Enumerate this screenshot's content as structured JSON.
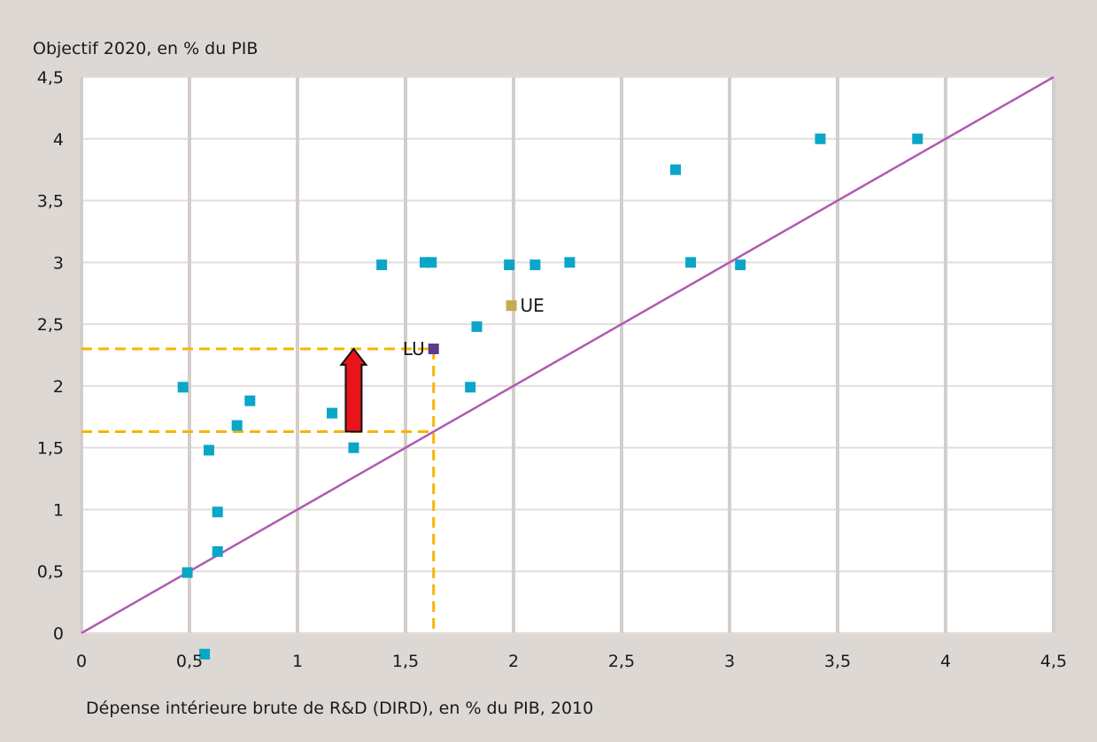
{
  "chart_data": {
    "type": "scatter",
    "ylabel": "Objectif 2020, en % du PIB",
    "xlabel": "Dépense intérieure brute de R&D (DIRD), en % du PIB, 2010",
    "xlim": [
      0,
      4.5
    ],
    "ylim": [
      0,
      4.5
    ],
    "x_ticks": [
      "0",
      "0,5",
      "1",
      "1,5",
      "2",
      "2,5",
      "3",
      "3,5",
      "4",
      "4,5"
    ],
    "y_ticks": [
      "0",
      "0,5",
      "1",
      "1,5",
      "2",
      "2,5",
      "3",
      "3,5",
      "4",
      "4,5"
    ],
    "grid": "vertical lines at x ticks, horizontal lines at y ticks",
    "reference_line": {
      "from": [
        0,
        0
      ],
      "to": [
        4.5,
        4.5
      ],
      "color": "#b05ab3"
    },
    "series": [
      {
        "color": "#0aa6c8",
        "points": [
          [
            0.47,
            1.99
          ],
          [
            0.49,
            0.49
          ],
          [
            0.57,
            -0.17
          ],
          [
            0.59,
            1.48
          ],
          [
            0.63,
            0.98
          ],
          [
            0.63,
            0.66
          ],
          [
            0.72,
            1.68
          ],
          [
            0.78,
            1.88
          ],
          [
            1.16,
            1.78
          ],
          [
            1.26,
            1.5
          ],
          [
            1.39,
            2.98
          ],
          [
            1.59,
            3.0
          ],
          [
            1.62,
            3.0
          ],
          [
            1.8,
            1.99
          ],
          [
            1.83,
            2.48
          ],
          [
            1.98,
            2.98
          ],
          [
            2.1,
            2.98
          ],
          [
            2.26,
            3.0
          ],
          [
            2.75,
            3.75
          ],
          [
            2.82,
            3.0
          ],
          [
            3.05,
            2.98
          ],
          [
            3.42,
            4.0
          ],
          [
            3.87,
            4.0
          ]
        ]
      }
    ],
    "labeled_points": [
      {
        "label": "UE",
        "x": 1.99,
        "y": 2.65,
        "color": "#c4ac4e"
      },
      {
        "label": "LU",
        "x": 1.63,
        "y": 2.3,
        "color": "#5a3a8c"
      }
    ],
    "annotation": {
      "guide_x": 1.63,
      "guide_y_low": 1.63,
      "guide_y_high": 2.3,
      "guide_color": "#f7b500",
      "arrow": {
        "x": 1.26,
        "y_from": 1.63,
        "y_to": 2.3,
        "color": "#e8141b"
      }
    }
  }
}
